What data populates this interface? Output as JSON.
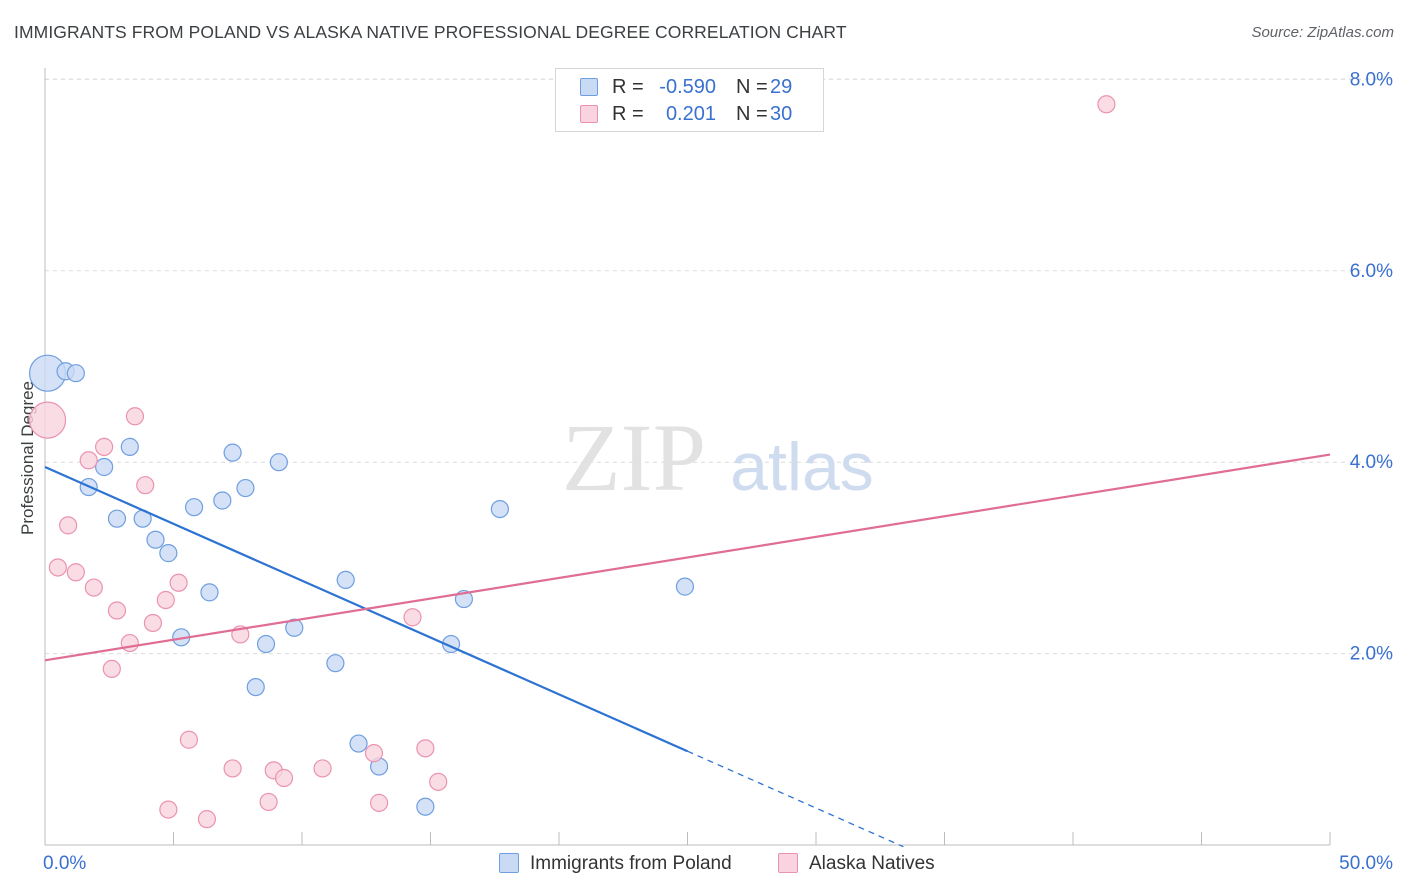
{
  "header": {
    "title": "IMMIGRANTS FROM POLAND VS ALASKA NATIVE PROFESSIONAL DEGREE CORRELATION CHART",
    "source": "Source: ZipAtlas.com"
  },
  "watermark": {
    "zip": "ZIP",
    "atlas": "atlas"
  },
  "legend": {
    "rows": [
      {
        "r_label": "R =",
        "r_value": "-0.590",
        "n_label": "N =",
        "n_value": "29"
      },
      {
        "r_label": "R =",
        "r_value": "0.201",
        "n_label": "N =",
        "n_value": "30"
      }
    ],
    "bottom": [
      "Immigrants from Poland",
      "Alaska Natives"
    ]
  },
  "colors": {
    "blue_fill": "#c9daf5",
    "blue_stroke": "#6f9fe0",
    "blue_line": "#2d73d2",
    "pink_fill": "#f9d3df",
    "pink_stroke": "#ea93b0",
    "pink_line": "#e06d93",
    "tick_label": "#3a70d0",
    "grid": "#dcdcdc"
  },
  "chart_data": {
    "type": "scatter",
    "title": "IMMIGRANTS FROM POLAND VS ALASKA NATIVE PROFESSIONAL DEGREE CORRELATION CHART",
    "xlabel": "",
    "ylabel": "Professional Degree",
    "xlim": [
      0,
      50
    ],
    "ylim": [
      0,
      8.3
    ],
    "x_tick_labels": [
      "0.0%",
      "50.0%"
    ],
    "y_ticks": [
      2,
      4,
      6,
      8
    ],
    "y_tick_labels": [
      "2.0%",
      "4.0%",
      "6.0%",
      "8.0%"
    ],
    "grid": true,
    "series": [
      {
        "name": "Immigrants from Poland",
        "r": -0.59,
        "n": 29,
        "trend": {
          "x0": 0,
          "y0": 3.95,
          "x1": 25,
          "y1": 0.98,
          "dash_to_x": 33.4
        },
        "points": [
          {
            "x": 0.1,
            "y": 4.93,
            "big": true
          },
          {
            "x": 0.8,
            "y": 4.95
          },
          {
            "x": 1.2,
            "y": 4.93
          },
          {
            "x": 3.3,
            "y": 4.16
          },
          {
            "x": 7.3,
            "y": 4.1
          },
          {
            "x": 9.1,
            "y": 4.0
          },
          {
            "x": 2.3,
            "y": 3.95
          },
          {
            "x": 1.7,
            "y": 3.74
          },
          {
            "x": 7.8,
            "y": 3.73
          },
          {
            "x": 6.9,
            "y": 3.6
          },
          {
            "x": 5.8,
            "y": 3.53
          },
          {
            "x": 17.7,
            "y": 3.51
          },
          {
            "x": 2.8,
            "y": 3.41
          },
          {
            "x": 3.8,
            "y": 3.41
          },
          {
            "x": 4.3,
            "y": 3.19
          },
          {
            "x": 4.8,
            "y": 3.05
          },
          {
            "x": 11.7,
            "y": 2.77
          },
          {
            "x": 24.9,
            "y": 2.7
          },
          {
            "x": 6.4,
            "y": 2.64
          },
          {
            "x": 16.3,
            "y": 2.57
          },
          {
            "x": 9.7,
            "y": 2.27
          },
          {
            "x": 5.3,
            "y": 2.17
          },
          {
            "x": 8.6,
            "y": 2.1
          },
          {
            "x": 15.8,
            "y": 2.1
          },
          {
            "x": 11.3,
            "y": 1.9
          },
          {
            "x": 8.2,
            "y": 1.65
          },
          {
            "x": 12.2,
            "y": 1.06
          },
          {
            "x": 13.0,
            "y": 0.82
          },
          {
            "x": 14.8,
            "y": 0.4
          }
        ]
      },
      {
        "name": "Alaska Natives",
        "r": 0.201,
        "n": 30,
        "trend": {
          "x0": 0,
          "y0": 1.93,
          "x1": 50,
          "y1": 4.08
        },
        "points": [
          {
            "x": 41.3,
            "y": 7.74
          },
          {
            "x": 3.5,
            "y": 4.48
          },
          {
            "x": 0.1,
            "y": 4.44,
            "big": true
          },
          {
            "x": 2.3,
            "y": 4.16
          },
          {
            "x": 1.7,
            "y": 4.02
          },
          {
            "x": 3.9,
            "y": 3.76
          },
          {
            "x": 0.9,
            "y": 3.34
          },
          {
            "x": 0.5,
            "y": 2.9
          },
          {
            "x": 1.2,
            "y": 2.85
          },
          {
            "x": 5.2,
            "y": 2.74
          },
          {
            "x": 1.9,
            "y": 2.69
          },
          {
            "x": 4.7,
            "y": 2.56
          },
          {
            "x": 2.8,
            "y": 2.45
          },
          {
            "x": 4.2,
            "y": 2.32
          },
          {
            "x": 14.3,
            "y": 2.38
          },
          {
            "x": 7.6,
            "y": 2.2
          },
          {
            "x": 3.3,
            "y": 2.11
          },
          {
            "x": 2.6,
            "y": 1.84
          },
          {
            "x": 5.6,
            "y": 1.1
          },
          {
            "x": 14.8,
            "y": 1.01
          },
          {
            "x": 12.8,
            "y": 0.96
          },
          {
            "x": 7.3,
            "y": 0.8
          },
          {
            "x": 8.9,
            "y": 0.78
          },
          {
            "x": 10.8,
            "y": 0.8
          },
          {
            "x": 9.3,
            "y": 0.7
          },
          {
            "x": 15.3,
            "y": 0.66
          },
          {
            "x": 8.7,
            "y": 0.45
          },
          {
            "x": 13.0,
            "y": 0.44
          },
          {
            "x": 4.8,
            "y": 0.37
          },
          {
            "x": 6.3,
            "y": 0.27
          }
        ]
      }
    ]
  }
}
